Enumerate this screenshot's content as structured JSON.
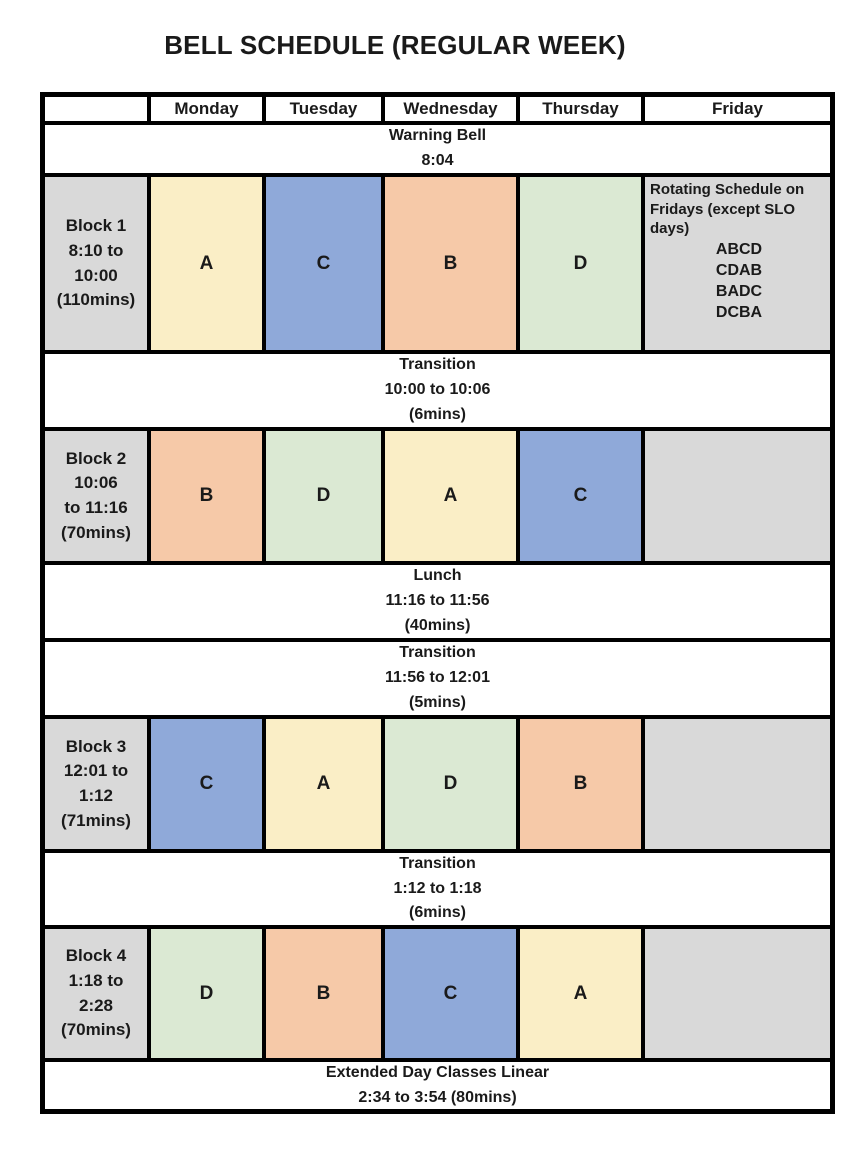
{
  "title": "BELL SCHEDULE (REGULAR WEEK)",
  "header": {
    "days": [
      "Monday",
      "Tuesday",
      "Wednesday",
      "Thursday",
      "Friday"
    ]
  },
  "breaks": {
    "warning": [
      "Warning Bell",
      "8:04"
    ],
    "transition1": [
      "Transition",
      "10:00 to 10:06",
      "(6mins)"
    ],
    "lunch": [
      "Lunch",
      "11:16 to 11:56",
      "(40mins)"
    ],
    "transition2": [
      "Transition",
      "11:56 to 12:01",
      "(5mins)"
    ],
    "transition3": [
      "Transition",
      "1:12 to 1:18",
      "(6mins)"
    ],
    "extended": [
      "Extended Day Classes Linear",
      "2:34 to 3:54 (80mins)"
    ]
  },
  "blocks": [
    {
      "label": [
        "Block 1",
        "8:10 to",
        "10:00",
        "(110mins)"
      ],
      "classes": {
        "monday": "A",
        "tuesday": "C",
        "wednesday": "B",
        "thursday": "D"
      }
    },
    {
      "label": [
        "Block 2",
        "10:06",
        "to 11:16",
        "(70mins)"
      ],
      "classes": {
        "monday": "B",
        "tuesday": "D",
        "wednesday": "A",
        "thursday": "C"
      }
    },
    {
      "label": [
        "Block 3",
        "12:01 to",
        "1:12",
        "(71mins)"
      ],
      "classes": {
        "monday": "C",
        "tuesday": "A",
        "wednesday": "D",
        "thursday": "B"
      }
    },
    {
      "label": [
        "Block 4",
        "1:18 to",
        "2:28",
        "(70mins)"
      ],
      "classes": {
        "monday": "D",
        "tuesday": "B",
        "wednesday": "C",
        "thursday": "A"
      }
    }
  ],
  "friday_note": {
    "intro": "Rotating Schedule on Fridays (except SLO days)",
    "rotations": [
      "ABCD",
      "CDAB",
      "BADC",
      "DCBA"
    ]
  },
  "colors": {
    "label_bg": "#d9d9d9",
    "off_bg": "#d9d9d9",
    "cell_colors": {
      "A": "#faeec6",
      "B": "#f6c9a8",
      "C": "#8fa9d9",
      "D": "#dbe9d3"
    },
    "border": "#000000"
  }
}
